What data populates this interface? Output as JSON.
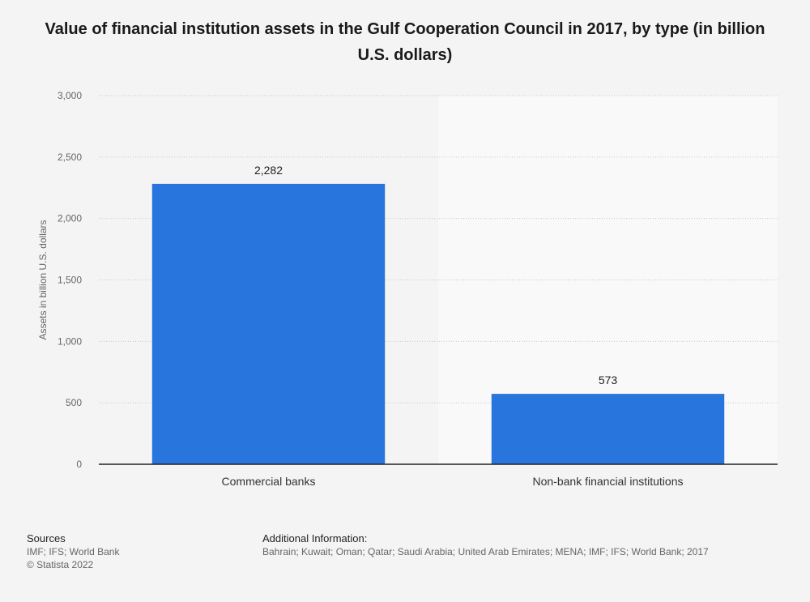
{
  "chart_data": {
    "type": "bar",
    "title": "Value of financial institution assets in the Gulf Cooperation Council in 2017, by type (in billion U.S. dollars)",
    "ylabel": "Assets in billion U.S. dollars",
    "xlabel": "",
    "categories": [
      "Commercial banks",
      "Non-bank financial institutions"
    ],
    "values": [
      2282,
      573
    ],
    "value_labels": [
      "2,282",
      "573"
    ],
    "ylim": [
      0,
      3000
    ],
    "yticks": [
      0,
      500,
      1000,
      1500,
      2000,
      2500,
      3000
    ],
    "ytick_labels": [
      "0",
      "500",
      "1,000",
      "1,500",
      "2,000",
      "2,500",
      "3,000"
    ],
    "grid": true,
    "bar_color": "#2876dd"
  },
  "footer": {
    "sources_heading": "Sources",
    "sources_text": "IMF; IFS; World Bank",
    "copyright": "© Statista 2022",
    "info_heading": "Additional Information:",
    "info_text": "Bahrain; Kuwait; Oman; Qatar; Saudi Arabia; United Arab Emirates; MENA; IMF; IFS; World Bank; 2017"
  }
}
